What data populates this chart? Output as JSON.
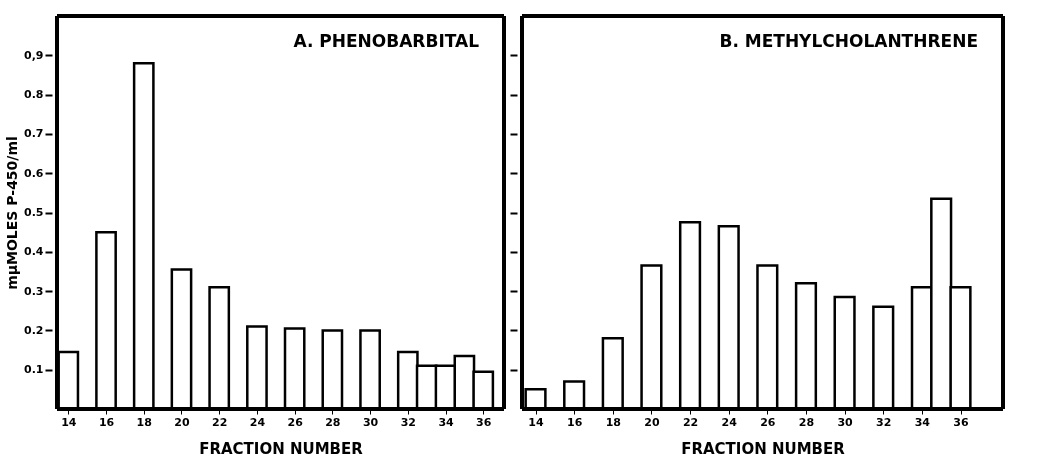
{
  "chart_data": [
    {
      "type": "bar",
      "annotations": [
        "A. PHENOBARBITAL"
      ],
      "xlabel": "FRACTION NUMBER",
      "ylabel": "mμMOLES P-450/ml",
      "x": [
        14,
        16,
        18,
        20,
        22,
        24,
        26,
        28,
        30,
        32,
        33,
        34,
        35,
        36
      ],
      "values": [
        0.145,
        0.45,
        0.88,
        0.355,
        0.31,
        0.21,
        0.205,
        0.2,
        0.2,
        0.145,
        0.11,
        0.11,
        0.135,
        0.095
      ],
      "color": "#ffffff",
      "xlim": [
        13.4,
        37.1
      ],
      "xticks": [
        14,
        16,
        18,
        20,
        22,
        24,
        26,
        28,
        30,
        32,
        34,
        36
      ],
      "ylim": [
        0,
        1.0
      ],
      "yticks": [
        0.1,
        0.2,
        0.3,
        0.4,
        0.5,
        0.6,
        0.7,
        0.8,
        {
          "value": 0.9,
          "label": "0,9"
        }
      ],
      "grid": false
    },
    {
      "type": "bar",
      "annotations": [
        "B. METHYLCHOLANTHRENE"
      ],
      "xlabel": "FRACTION NUMBER",
      "x": [
        14,
        16,
        18,
        20,
        22,
        24,
        26,
        28,
        30,
        32,
        34,
        35,
        36
      ],
      "values": [
        0.05,
        0.07,
        0.18,
        0.365,
        0.475,
        0.465,
        0.365,
        0.32,
        0.285,
        0.26,
        0.31,
        0.535,
        0.31
      ],
      "color": "#ffffff",
      "xlim": [
        13.3,
        38.2
      ],
      "xticks": [
        14,
        16,
        18,
        20,
        22,
        24,
        26,
        28,
        30,
        32,
        34,
        36
      ],
      "ylim": [
        0,
        1.0
      ],
      "yticks": [
        0.1,
        0.2,
        0.3,
        0.4,
        0.5,
        0.6,
        0.7,
        0.8,
        0.9
      ],
      "tick_labels": "x",
      "grid": false
    }
  ]
}
